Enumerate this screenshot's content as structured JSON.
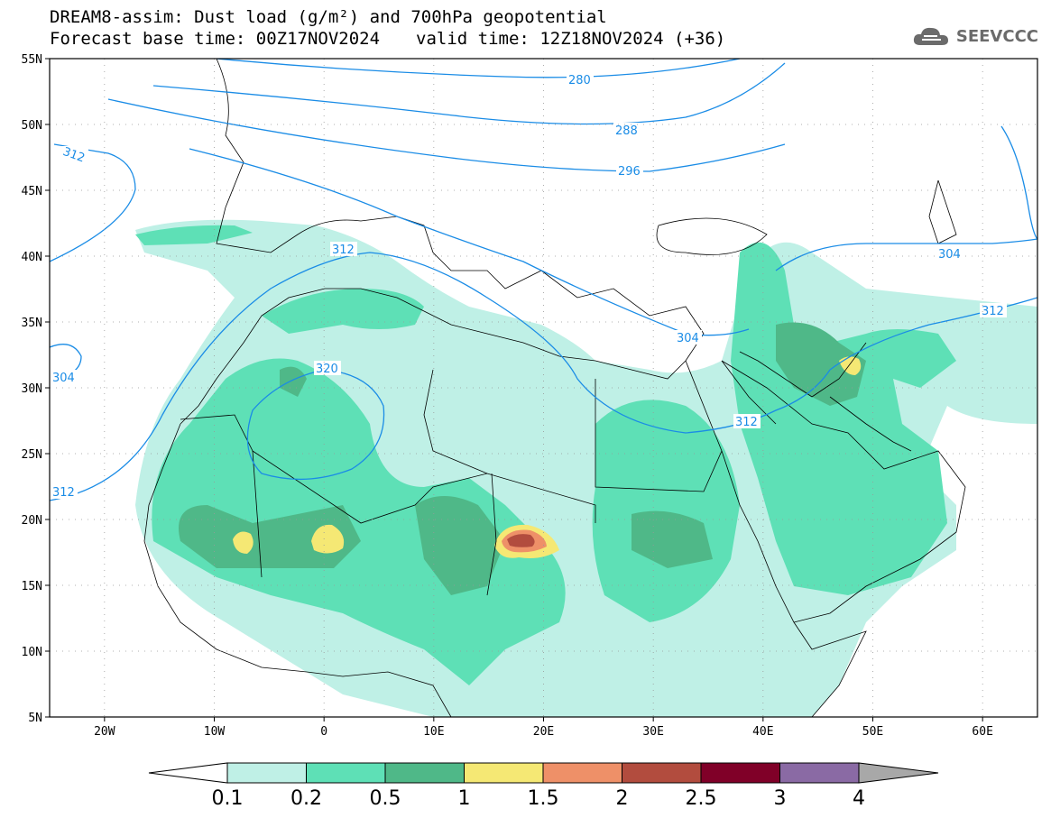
{
  "title": {
    "line1": "DREAM8-assim: Dust load (g/m²) and 700hPa geopotential",
    "base_time": "Forecast base time: 00Z17NOV2024",
    "valid_time": "valid time: 12Z18NOV2024 (+36)"
  },
  "logo": {
    "text": "SEEVCCC",
    "icon": "cloud-icon"
  },
  "axes": {
    "lat_ticks": [
      "55N",
      "50N",
      "45N",
      "40N",
      "35N",
      "30N",
      "25N",
      "20N",
      "15N",
      "10N",
      "5N"
    ],
    "lon_ticks": [
      "20W",
      "10W",
      "0",
      "10E",
      "20E",
      "30E",
      "40E",
      "50E",
      "60E"
    ],
    "lat_range": [
      5,
      55
    ],
    "lon_range": [
      -25,
      65
    ]
  },
  "contours": {
    "color": "#1a8ce6",
    "labels": [
      "280",
      "288",
      "296",
      "304",
      "312",
      "312",
      "320",
      "304",
      "312",
      "312",
      "304"
    ]
  },
  "colorbar": {
    "colors": [
      "#ffffff",
      "#bff0e6",
      "#5ee0b6",
      "#4fb888",
      "#f5e874",
      "#ee9068",
      "#b24c3e",
      "#800028",
      "#8a6aa4",
      "#a8a8a8"
    ],
    "labels": [
      "0.1",
      "0.2",
      "0.5",
      "1",
      "1.5",
      "2",
      "2.5",
      "3",
      "4"
    ]
  }
}
